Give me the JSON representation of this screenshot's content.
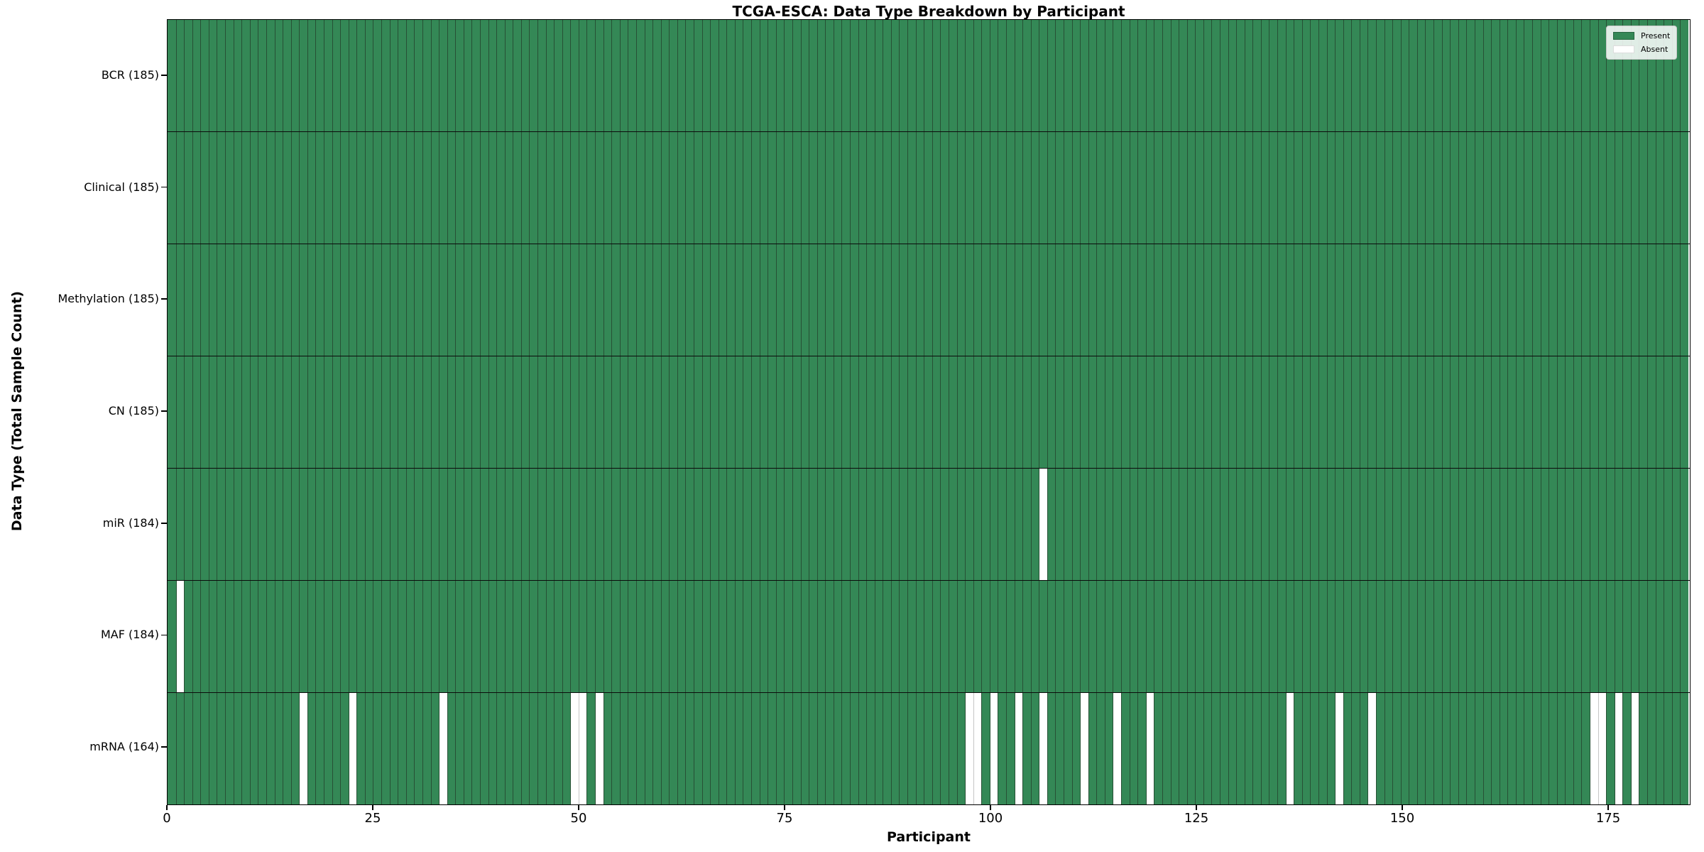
{
  "chart_data": {
    "type": "heatmap",
    "title": "TCGA-ESCA: Data Type Breakdown by Participant",
    "xlabel": "Participant",
    "ylabel": "Data Type (Total Sample Count)",
    "n_participants": 185,
    "x_ticks": [
      0,
      25,
      50,
      75,
      100,
      125,
      150,
      175
    ],
    "grid": false,
    "legend_position": "upper right",
    "legend": {
      "entries": [
        {
          "label": "Present",
          "color": "#348856"
        },
        {
          "label": "Absent",
          "color": "#ffffff"
        }
      ]
    },
    "rows": [
      {
        "name": "BCR",
        "label": "BCR (185)",
        "total_samples": 185,
        "absent_participants": []
      },
      {
        "name": "Clinical",
        "label": "Clinical (185)",
        "total_samples": 185,
        "absent_participants": []
      },
      {
        "name": "Methylation",
        "label": "Methylation (185)",
        "total_samples": 185,
        "absent_participants": []
      },
      {
        "name": "CN",
        "label": "CN (185)",
        "total_samples": 185,
        "absent_participants": []
      },
      {
        "name": "miR",
        "label": "miR (184)",
        "total_samples": 184,
        "absent_participants": [
          106
        ]
      },
      {
        "name": "MAF",
        "label": "MAF (184)",
        "total_samples": 184,
        "absent_participants": [
          1
        ]
      },
      {
        "name": "mRNA",
        "label": "mRNA (164)",
        "total_samples": 164,
        "absent_participants": [
          16,
          22,
          33,
          49,
          50,
          52,
          97,
          98,
          100,
          103,
          106,
          111,
          115,
          119,
          136,
          142,
          146,
          173,
          174,
          176,
          178
        ]
      }
    ],
    "colors": {
      "present": "#348856",
      "absent": "#ffffff",
      "bar_edge": "#275035",
      "absent_adjacent_edge": "#c6c6c6",
      "axis": "#000000"
    }
  }
}
